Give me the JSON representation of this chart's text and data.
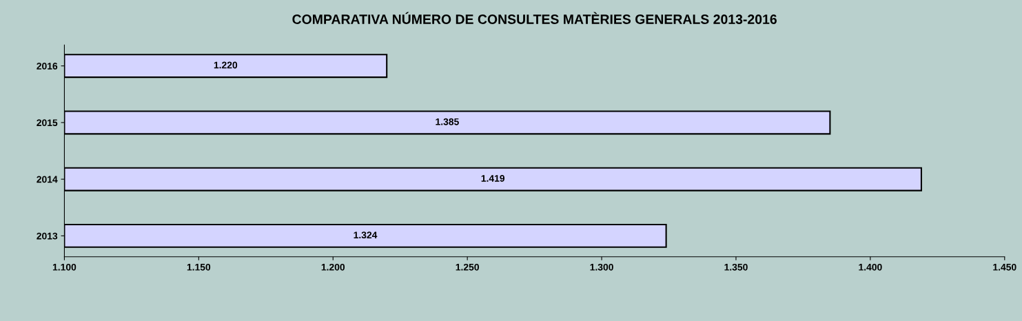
{
  "chart_data": {
    "type": "bar",
    "orientation": "horizontal",
    "title": "COMPARATIVA NÚMERO DE CONSULTES MATÈRIES GENERALS 2013-2016",
    "categories": [
      "2016",
      "2015",
      "2014",
      "2013"
    ],
    "values": [
      1220,
      1385,
      1419,
      1324
    ],
    "value_labels": [
      "1.220",
      "1.385",
      "1.419",
      "1.324"
    ],
    "color": "#d4d4ff",
    "xlim": [
      1100,
      1450
    ],
    "xticks": [
      {
        "value": 1100,
        "label": "1.100"
      },
      {
        "value": 1150,
        "label": "1.150"
      },
      {
        "value": 1200,
        "label": "1.200"
      },
      {
        "value": 1250,
        "label": "1.250"
      },
      {
        "value": 1300,
        "label": "1.300"
      },
      {
        "value": 1350,
        "label": "1.350"
      },
      {
        "value": 1400,
        "label": "1.400"
      },
      {
        "value": 1450,
        "label": "1.450"
      }
    ],
    "grid": false,
    "legend": false
  }
}
